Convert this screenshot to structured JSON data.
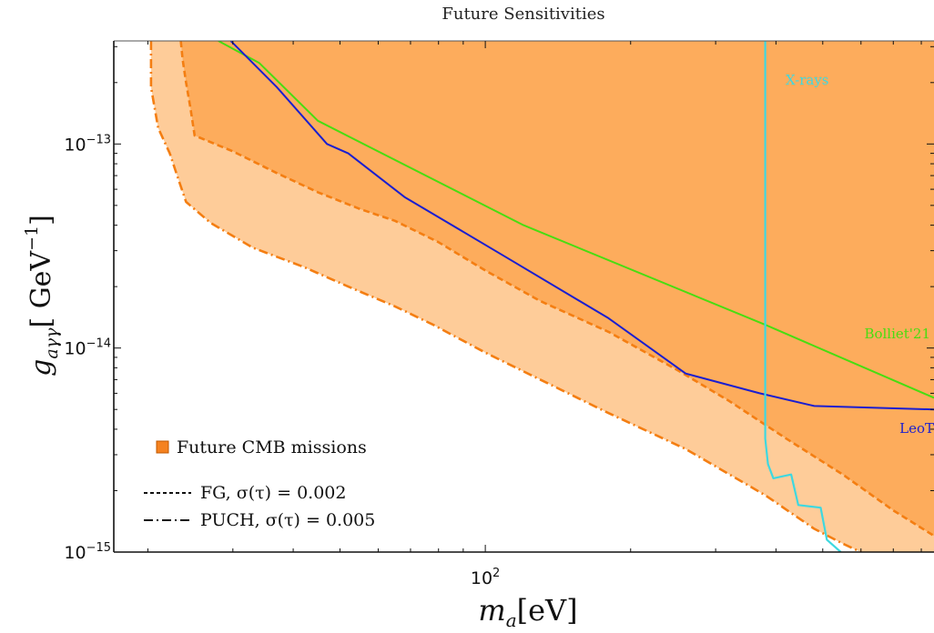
{
  "chart_data": {
    "type": "area",
    "title": "Future Sensitivities",
    "xlabel": "m_a[eV]",
    "ylabel": "g_aγγ[ GeV^−1]",
    "x_scale": "log",
    "y_scale": "log",
    "xlim": [
      17,
      850
    ],
    "ylim": [
      1e-15,
      3.2e-13
    ],
    "x_ticks": [
      {
        "value": 100,
        "label": "10^2"
      }
    ],
    "y_ticks": [
      {
        "value": 1e-13,
        "label": "10^−13"
      },
      {
        "value": 1e-14,
        "label": "10^−14"
      },
      {
        "value": 1e-15,
        "label": "10^−15"
      }
    ],
    "colors": {
      "pessimistic_fill": "#fecc99",
      "optimistic_fill": "#fdac5c",
      "boundary": "#f47e12",
      "bolliet": "#48dd10",
      "leot": "#1a1ed0",
      "xrays": "#3ed8e0",
      "legend_marker": "#f5821f"
    },
    "regions": [
      {
        "name": "PUCH, σ(τ) = 0.005",
        "line_style": "dash-dot",
        "boundary": {
          "x": [
            20.3,
            20.3,
            21.0,
            22.2,
            23.0,
            24.0,
            27.0,
            33.0,
            42.0,
            52.0,
            65.0,
            78.0,
            100.0,
            130.0,
            180.0,
            260.0,
            380.0,
            480.0,
            550.0,
            600.0
          ],
          "y": [
            3.2e-13,
            1.9e-13,
            1.2e-13,
            9e-14,
            7e-14,
            5.2e-14,
            4.1e-14,
            3.1e-14,
            2.5e-14,
            2e-14,
            1.6e-14,
            1.3e-14,
            9.5e-15,
            7e-15,
            4.8e-15,
            3.2e-15,
            1.9e-15,
            1.3e-15,
            1.1e-15,
            1e-15
          ]
        }
      },
      {
        "name": "FG, σ(τ) = 0.002",
        "line_style": "dashed",
        "boundary": {
          "x": [
            23.4,
            23.6,
            24.0,
            24.5,
            25.0,
            30.0,
            37.0,
            45.0,
            55.0,
            65.0,
            80.0,
            100.0,
            130.0,
            180.0,
            250.0,
            320.0,
            420.0,
            550.0,
            700.0,
            850.0
          ],
          "y": [
            3.2e-13,
            2.6e-13,
            2e-13,
            1.5e-13,
            1.1e-13,
            9.2e-14,
            7.2e-14,
            5.8e-14,
            4.8e-14,
            4.2e-14,
            3.3e-14,
            2.4e-14,
            1.7e-14,
            1.2e-14,
            7.8e-15,
            5.5e-15,
            3.6e-15,
            2.4e-15,
            1.6e-15,
            1.2e-15
          ]
        }
      }
    ],
    "lines": [
      {
        "name": "Bolliet'21",
        "x": [
          28.0,
          34.0,
          45.0,
          120.0,
          380.0,
          850.0
        ],
        "y": [
          3.2e-13,
          2.5e-13,
          1.3e-13,
          4e-14,
          1.3e-14,
          5.7e-15
        ]
      },
      {
        "name": "LeoT",
        "x": [
          29.7,
          37.0,
          47.0,
          52.0,
          68.0,
          110.0,
          180.0,
          260.0,
          370.0,
          480.0,
          850.0
        ],
        "y": [
          3.2e-13,
          1.9e-13,
          1e-13,
          9e-14,
          5.5e-14,
          2.8e-14,
          1.4e-14,
          7.5e-15,
          6e-15,
          5.2e-15,
          5e-15
        ]
      },
      {
        "name": "X-rays",
        "x": [
          380.0,
          380.0,
          385.0,
          395.0,
          430.0,
          445.0,
          495.0,
          510.0,
          545.0
        ],
        "y": [
          3.2e-13,
          3.6e-15,
          2.7e-15,
          2.3e-15,
          2.4e-15,
          1.7e-15,
          1.65e-15,
          1.15e-15,
          1e-15
        ]
      }
    ],
    "annotations": [
      "X-rays",
      "Bolliet'21",
      "LeoT"
    ],
    "legend": {
      "placement": "bottom-left",
      "entries": [
        {
          "label": "Future CMB missions",
          "marker": "square"
        },
        {
          "label": "FG, σ(τ) = 0.002",
          "marker": "dashed"
        },
        {
          "label": "PUCH, σ(τ) = 0.005",
          "marker": "dash-dot"
        }
      ]
    },
    "grid": false
  }
}
